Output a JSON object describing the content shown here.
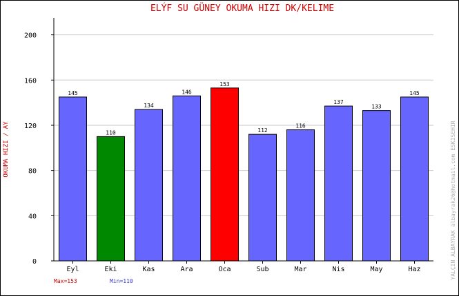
{
  "chart_data": {
    "type": "bar",
    "title": "ELÝF SU GÜNEY   OKUMA HIZI  DK/KELIME",
    "ylabel": "OKUMA HIZI / AY",
    "xlabel": "",
    "categories": [
      "Eyl",
      "Eki",
      "Kas",
      "Ara",
      "Oca",
      "Sub",
      "Mar",
      "Nis",
      "May",
      "Haz"
    ],
    "values": [
      145,
      110,
      134,
      146,
      153,
      112,
      116,
      137,
      133,
      145
    ],
    "ylim": [
      0,
      215
    ],
    "yticks": [
      0,
      40,
      80,
      120,
      160,
      200
    ],
    "grid": true,
    "colors": {
      "default": "#6666ff",
      "max": "#ff0000",
      "min": "#008800",
      "title": "#d00000",
      "min_label": "#3333cc"
    },
    "footer": {
      "max_label": "Max=153",
      "min_label": "Min=110"
    },
    "watermark": "YALÇIN ALBAYRAK   albayrak26@hotmail.com   ESKISEHIR"
  }
}
